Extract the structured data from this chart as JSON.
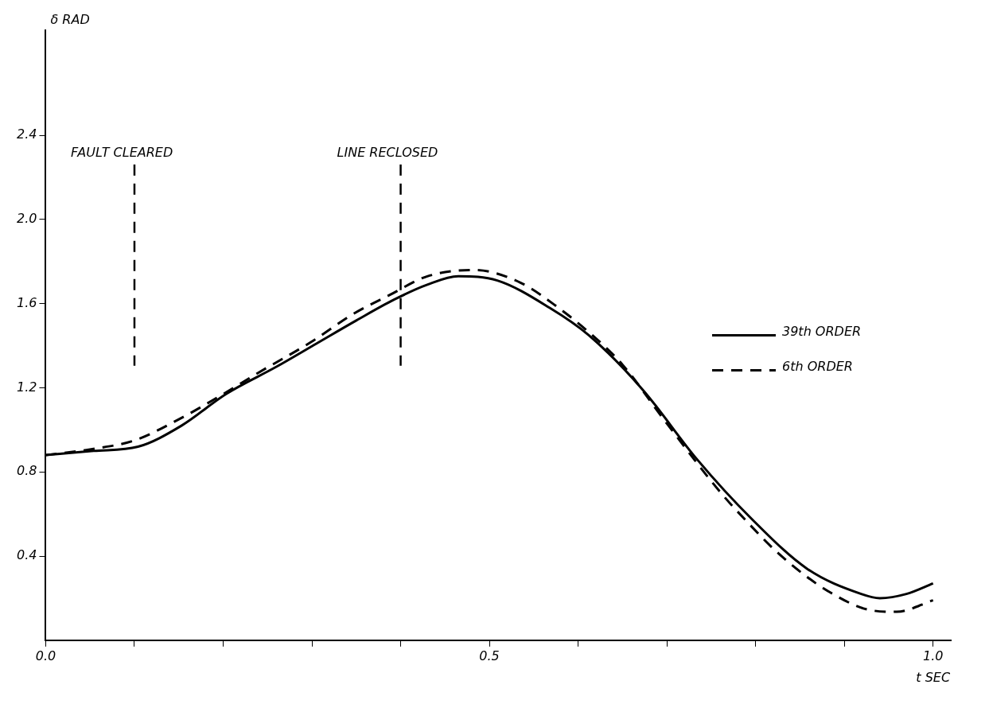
{
  "chart_data": {
    "type": "line",
    "xlabel": "t SEC",
    "ylabel": "δ RAD",
    "xlim": [
      0,
      1.02
    ],
    "ylim": [
      0,
      2.9
    ],
    "xticks": [
      {
        "value": 0,
        "label": "0.0"
      },
      {
        "value": 0.1,
        "label": null
      },
      {
        "value": 0.2,
        "label": null
      },
      {
        "value": 0.3,
        "label": null
      },
      {
        "value": 0.4,
        "label": null
      },
      0.5,
      {
        "value": 0.6,
        "label": null
      },
      {
        "value": 0.7,
        "label": null
      },
      {
        "value": 0.8,
        "label": null
      },
      {
        "value": 0.9,
        "label": null
      },
      {
        "value": 1,
        "label": "1.0"
      }
    ],
    "yticks": [
      0.4,
      0.8,
      1.2,
      1.6,
      {
        "value": 2,
        "label": "2.0"
      },
      2.4
    ],
    "grid": false,
    "legend": "right",
    "marker": "none",
    "series": [
      {
        "name": "39th ORDER",
        "color": "#000000",
        "line_style": "solid",
        "x": [
          0,
          0.054,
          0.104,
          0.153,
          0.203,
          0.26,
          0.305,
          0.35,
          0.393,
          0.43,
          0.465,
          0.509,
          0.568,
          0.612,
          0.673,
          0.734,
          0.796,
          0.858,
          0.919,
          0.94,
          0.97,
          1.0
        ],
        "values": [
          0.88,
          0.9,
          0.92,
          1.02,
          1.17,
          1.3,
          1.41,
          1.52,
          1.62,
          1.69,
          1.73,
          1.71,
          1.58,
          1.45,
          1.19,
          0.86,
          0.575,
          0.34,
          0.22,
          0.2,
          0.22,
          0.27
        ]
      },
      {
        "name": "6th ORDER",
        "color": "#000000",
        "line_style": "dashed",
        "x": [
          0,
          0.054,
          0.1,
          0.15,
          0.2,
          0.239,
          0.3,
          0.346,
          0.387,
          0.43,
          0.483,
          0.535,
          0.578,
          0.616,
          0.65,
          0.7,
          0.759,
          0.79,
          0.82,
          0.852,
          0.885,
          0.927,
          0.959,
          1.0
        ],
        "values": [
          0.88,
          0.91,
          0.95,
          1.05,
          1.17,
          1.27,
          1.42,
          1.55,
          1.64,
          1.73,
          1.76,
          1.7,
          1.58,
          1.45,
          1.31,
          1.03,
          0.71,
          0.565,
          0.435,
          0.32,
          0.225,
          0.145,
          0.135,
          0.19
        ]
      }
    ],
    "ref_lines": [
      {
        "axis": "x",
        "value": 0.1,
        "label": "FAULT CLEARED",
        "line_style": "dashed"
      },
      {
        "axis": "x",
        "value": 0.4,
        "label": "LINE RECLOSED",
        "line_style": "dashed"
      }
    ]
  }
}
